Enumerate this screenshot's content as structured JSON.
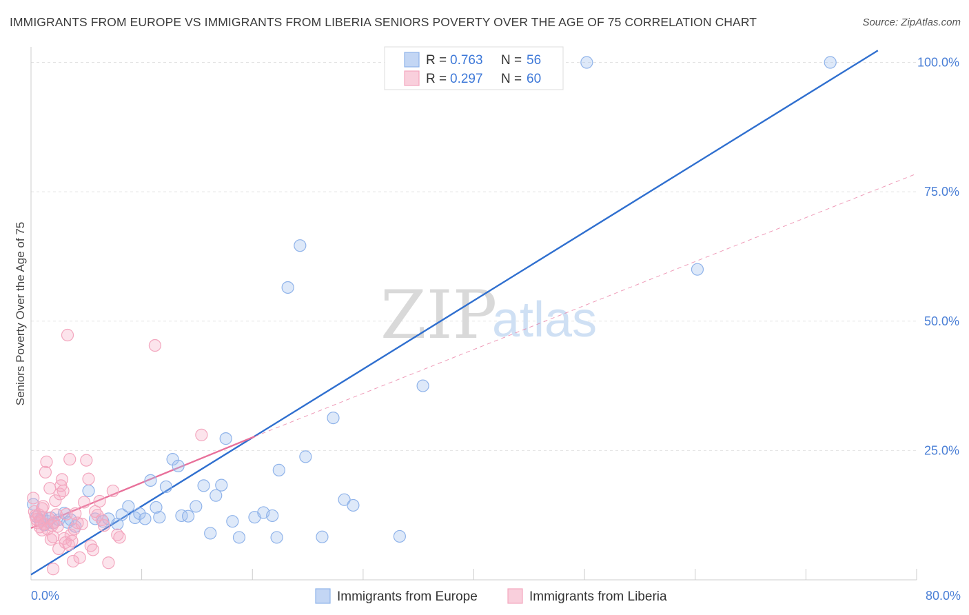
{
  "chart_data": {
    "type": "scatter",
    "title": "IMMIGRANTS FROM EUROPE VS IMMIGRANTS FROM LIBERIA SENIORS POVERTY OVER THE AGE OF 75 CORRELATION CHART",
    "source": "Source: ZipAtlas.com",
    "xlabel": "",
    "ylabel": "Seniors Poverty Over the Age of 75",
    "xlim": [
      0,
      80
    ],
    "ylim": [
      0,
      103
    ],
    "x_tick_labels": {
      "min": "0.0%",
      "max": "80.0%"
    },
    "y_ticks": [
      {
        "value": 25,
        "label": "25.0%"
      },
      {
        "value": 50,
        "label": "50.0%"
      },
      {
        "value": 75,
        "label": "75.0%"
      },
      {
        "value": 100,
        "label": "100.0%"
      }
    ],
    "grid": true,
    "legend_position": "top-center",
    "watermark": {
      "zip": "ZIP",
      "atlas": "atlas"
    },
    "series": [
      {
        "name": "Immigrants from Europe",
        "color": "#8fb3ea",
        "line_color": "#2f6fcf",
        "R": "0.763",
        "N": "56",
        "R_label": "R = ",
        "N_label": "N = ",
        "trend": {
          "x0": 0,
          "y0": 1.0,
          "x1": 76.5,
          "y1": 102.3
        },
        "points": [
          [
            0.2,
            14.6
          ],
          [
            0.5,
            12.2
          ],
          [
            0.8,
            11.5
          ],
          [
            1.0,
            12.1
          ],
          [
            1.2,
            10.6
          ],
          [
            1.5,
            11.3
          ],
          [
            1.8,
            12.0
          ],
          [
            2.0,
            11.0
          ],
          [
            2.5,
            11.6
          ],
          [
            3.0,
            12.9
          ],
          [
            3.3,
            11.1
          ],
          [
            3.6,
            11.6
          ],
          [
            4.0,
            10.3
          ],
          [
            5.2,
            17.2
          ],
          [
            5.8,
            11.8
          ],
          [
            6.5,
            11.3
          ],
          [
            7.0,
            11.8
          ],
          [
            7.8,
            10.8
          ],
          [
            8.2,
            12.6
          ],
          [
            8.8,
            14.2
          ],
          [
            9.4,
            12.0
          ],
          [
            9.8,
            12.8
          ],
          [
            10.3,
            11.8
          ],
          [
            10.8,
            19.2
          ],
          [
            11.3,
            14.0
          ],
          [
            11.6,
            12.1
          ],
          [
            12.2,
            18.0
          ],
          [
            12.8,
            23.3
          ],
          [
            13.3,
            22.0
          ],
          [
            13.6,
            12.4
          ],
          [
            14.2,
            12.3
          ],
          [
            14.9,
            14.2
          ],
          [
            15.6,
            18.2
          ],
          [
            16.2,
            9.0
          ],
          [
            16.7,
            16.3
          ],
          [
            17.2,
            18.3
          ],
          [
            17.6,
            27.3
          ],
          [
            18.2,
            11.3
          ],
          [
            18.8,
            8.2
          ],
          [
            20.2,
            12.1
          ],
          [
            21.0,
            13.0
          ],
          [
            21.8,
            12.4
          ],
          [
            22.2,
            8.2
          ],
          [
            22.4,
            21.2
          ],
          [
            23.2,
            56.5
          ],
          [
            24.3,
            64.6
          ],
          [
            24.8,
            23.8
          ],
          [
            26.3,
            8.3
          ],
          [
            27.3,
            31.3
          ],
          [
            28.3,
            15.5
          ],
          [
            29.1,
            14.4
          ],
          [
            33.3,
            8.4
          ],
          [
            35.4,
            37.5
          ],
          [
            50.2,
            100.0
          ],
          [
            60.2,
            60.0
          ],
          [
            72.2,
            100.0
          ]
        ]
      },
      {
        "name": "Immigrants from Liberia",
        "color": "#f3a6be",
        "line_color": "#e8709a",
        "R": "0.297",
        "N": "60",
        "R_label": "R = ",
        "N_label": "N = ",
        "trend": {
          "x0": 0,
          "y0": 10.0,
          "x1": 20.2,
          "y1": 27.7
        },
        "trend_dashed": {
          "x0": 20.2,
          "y0": 27.7,
          "x1": 80,
          "y1": 78.5
        },
        "points": [
          [
            0.2,
            15.8
          ],
          [
            0.3,
            13.2
          ],
          [
            0.4,
            12.4
          ],
          [
            0.5,
            11.7
          ],
          [
            0.6,
            11.0
          ],
          [
            0.7,
            12.6
          ],
          [
            0.8,
            10.2
          ],
          [
            0.9,
            11.3
          ],
          [
            1.0,
            9.6
          ],
          [
            1.1,
            14.2
          ],
          [
            1.2,
            10.8
          ],
          [
            1.3,
            20.8
          ],
          [
            1.4,
            22.8
          ],
          [
            1.5,
            9.8
          ],
          [
            1.6,
            11.9
          ],
          [
            1.7,
            17.7
          ],
          [
            1.8,
            7.8
          ],
          [
            1.9,
            10.5
          ],
          [
            2.0,
            2.1
          ],
          [
            2.1,
            11.1
          ],
          [
            2.2,
            15.3
          ],
          [
            2.3,
            12.6
          ],
          [
            2.4,
            10.3
          ],
          [
            2.5,
            6.0
          ],
          [
            2.6,
            16.6
          ],
          [
            2.7,
            18.2
          ],
          [
            2.8,
            19.4
          ],
          [
            2.9,
            17.2
          ],
          [
            3.0,
            8.0
          ],
          [
            3.1,
            7.2
          ],
          [
            3.2,
            12.7
          ],
          [
            3.3,
            47.3
          ],
          [
            3.4,
            6.8
          ],
          [
            3.5,
            23.3
          ],
          [
            3.6,
            8.7
          ],
          [
            3.7,
            7.5
          ],
          [
            3.8,
            3.6
          ],
          [
            3.9,
            9.8
          ],
          [
            4.0,
            12.8
          ],
          [
            4.2,
            11.0
          ],
          [
            4.4,
            4.3
          ],
          [
            4.6,
            10.8
          ],
          [
            4.8,
            15.0
          ],
          [
            5.0,
            23.1
          ],
          [
            5.2,
            19.5
          ],
          [
            5.4,
            6.6
          ],
          [
            5.6,
            5.8
          ],
          [
            5.8,
            13.2
          ],
          [
            6.0,
            12.5
          ],
          [
            6.2,
            15.2
          ],
          [
            6.4,
            11.6
          ],
          [
            6.6,
            10.5
          ],
          [
            7.0,
            3.3
          ],
          [
            7.4,
            17.2
          ],
          [
            7.8,
            8.7
          ],
          [
            8.0,
            8.2
          ],
          [
            11.2,
            45.3
          ],
          [
            15.4,
            28.0
          ],
          [
            1.0,
            13.8
          ],
          [
            2.0,
            8.3
          ]
        ]
      }
    ]
  }
}
